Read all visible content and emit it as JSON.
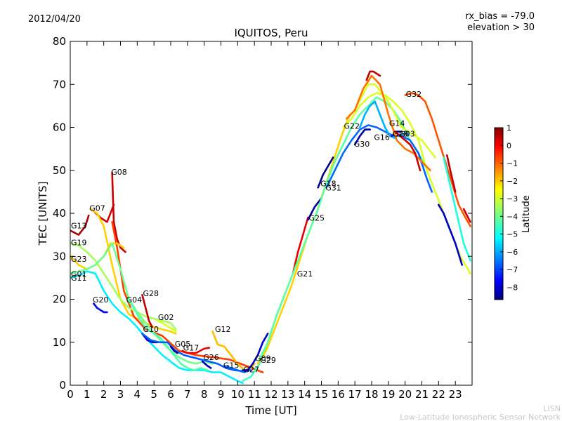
{
  "chart_data": {
    "type": "line",
    "title": "IQUITOS, Peru",
    "date": "2012/04/20",
    "annotation_line1": "rx_bias = -79.0",
    "annotation_line2": "elevation > 30",
    "xlabel": "Time [UT]",
    "ylabel": "TEC [UNITS]",
    "xlim": [
      0,
      24
    ],
    "ylim": [
      0,
      80
    ],
    "xticks": [
      "0",
      "1",
      "2",
      "3",
      "4",
      "5",
      "6",
      "7",
      "8",
      "9",
      "10",
      "11",
      "12",
      "13",
      "14",
      "15",
      "16",
      "17",
      "18",
      "19",
      "20",
      "21",
      "22",
      "23"
    ],
    "yticks": [
      "0",
      "10",
      "20",
      "30",
      "40",
      "50",
      "60",
      "70",
      "80"
    ],
    "grid": false,
    "colorbar": {
      "label": "Latitude",
      "range": [
        -8.7,
        1
      ],
      "ticks": [
        "1",
        "0",
        "−1",
        "−2",
        "−3",
        "−4",
        "−5",
        "−6",
        "−7",
        "−8"
      ],
      "colormap": [
        "#00007f",
        "#0000ff",
        "#007fff",
        "#00ffff",
        "#7fff7f",
        "#ffff00",
        "#ff7f00",
        "#ff0000",
        "#7f0000"
      ]
    },
    "series": [
      {
        "name": "G13",
        "lat": 0.6,
        "label_at": [
          0.0,
          36.5
        ],
        "x": [
          0,
          0.5,
          0.9,
          1.1
        ],
        "y": [
          36,
          35,
          37,
          39.5
        ]
      },
      {
        "name": "G07",
        "lat": 0.2,
        "label_at": [
          1.1,
          40.6
        ],
        "x": [
          1.2,
          1.4,
          1.8,
          2.2,
          2.6
        ],
        "y": [
          41,
          40.5,
          39,
          38,
          42
        ]
      },
      {
        "name": "G07",
        "lat": -2.2,
        "label_at": null,
        "x": [
          1.2,
          1.6,
          2.0,
          2.5,
          3.0,
          3.5,
          4.0,
          4.5,
          5.0,
          5.5,
          6.0,
          6.3
        ],
        "y": [
          41,
          40,
          37,
          28,
          20,
          16.5,
          15.5,
          14.5,
          13.5,
          13,
          12.5,
          12
        ]
      },
      {
        "name": "G08",
        "lat": 0.3,
        "label_at": [
          2.4,
          49
        ],
        "x": [
          2.5,
          2.6,
          2.8,
          3.0,
          3.3
        ],
        "y": [
          49.5,
          38,
          34,
          32,
          31
        ]
      },
      {
        "name": "G08",
        "lat": -0.8,
        "label_at": null,
        "x": [
          2.5,
          2.8,
          3.2,
          3.8,
          4.5,
          5.5,
          6.5,
          7.5,
          8.5,
          9.5,
          10.5,
          11.5
        ],
        "y": [
          38,
          32,
          22,
          16,
          13,
          11.5,
          8,
          7,
          6.5,
          6,
          4.5,
          3
        ]
      },
      {
        "name": "G19",
        "lat": -3.5,
        "label_at": [
          0.0,
          32.6
        ],
        "x": [
          0,
          0.5,
          1,
          1.5,
          2,
          2.5,
          3,
          3.5,
          4,
          4.5,
          5,
          5.5,
          6,
          6.3
        ],
        "y": [
          33,
          32.5,
          31,
          29,
          26,
          23,
          20,
          18,
          17,
          16,
          15.5,
          15,
          14.5,
          13
        ]
      },
      {
        "name": "G23",
        "lat": -2.2,
        "label_at": [
          0.0,
          28.7
        ],
        "x": [
          0,
          0.5,
          1,
          1.5,
          2,
          2.4,
          2.8,
          3.2
        ],
        "y": [
          30,
          28,
          27,
          28,
          30,
          33,
          33,
          32
        ]
      },
      {
        "name": "G01",
        "lat": -4.0,
        "label_at": [
          0.0,
          25.2
        ],
        "x": [
          0,
          0.5,
          1,
          1.5,
          2,
          2.5,
          3,
          3.5,
          4,
          4.5,
          5,
          5.5,
          6,
          6.5,
          7,
          7.5,
          8,
          8.5
        ],
        "y": [
          26,
          26.5,
          27,
          28,
          30,
          33,
          27,
          20,
          17,
          14.5,
          12,
          10,
          8,
          6.5,
          5.5,
          5,
          5.5,
          5
        ]
      },
      {
        "name": "G11",
        "lat": -5.2,
        "label_at": [
          0.0,
          24.3
        ],
        "x": [
          0,
          0.5,
          1,
          1.5,
          2,
          2.5,
          3,
          3.5,
          4,
          4.5,
          5,
          5.5,
          6,
          6.5,
          7,
          7.5,
          8,
          8.5,
          9,
          9.5,
          10,
          10.3
        ],
        "y": [
          25,
          25.5,
          26.5,
          26,
          22,
          19,
          17,
          15.5,
          13.5,
          11,
          9,
          7,
          5.5,
          4,
          3.5,
          3.5,
          3.5,
          3,
          3,
          2,
          1,
          0.5
        ]
      },
      {
        "name": "G20",
        "lat": -7.6,
        "label_at": [
          1.3,
          19.3
        ],
        "x": [
          1.4,
          1.6,
          1.8,
          2.0,
          2.2
        ],
        "y": [
          19,
          18,
          17.5,
          17,
          17
        ]
      },
      {
        "name": "G04",
        "lat": -4.3,
        "label_at": [
          3.3,
          19.3
        ],
        "x": [
          3.4,
          3.8,
          4.2,
          4.6,
          5.0,
          5.4,
          5.8,
          6.2,
          6.6,
          7.0,
          7.4,
          7.8,
          8.2
        ],
        "y": [
          20,
          18,
          15,
          13,
          12,
          11,
          9,
          7,
          5,
          4,
          3.5,
          4,
          3.5
        ]
      },
      {
        "name": "G28",
        "lat": 0.4,
        "label_at": [
          4.3,
          20.7
        ],
        "x": [
          4.3,
          4.5,
          4.7,
          4.9
        ],
        "y": [
          21,
          18,
          15,
          13.5
        ]
      },
      {
        "name": "G02",
        "lat": -3.0,
        "label_at": [
          5.2,
          15.2
        ],
        "x": [
          5.2,
          5.5,
          5.9,
          6.3
        ],
        "y": [
          15,
          14.5,
          13.5,
          12.5
        ]
      },
      {
        "name": "G10",
        "lat": -8.0,
        "label_at": [
          4.3,
          12.4
        ],
        "x": [
          4.3,
          4.6,
          4.9,
          5.2
        ],
        "y": [
          12,
          10.5,
          10,
          10
        ]
      },
      {
        "name": "G10",
        "lat": -6.6,
        "label_at": null,
        "x": [
          4.3,
          4.8,
          5.3,
          5.8,
          6.3,
          6.8,
          7.3,
          7.8,
          8.3,
          8.8,
          9.3,
          9.8,
          10.3,
          10.8
        ],
        "y": [
          12,
          10.5,
          10,
          10,
          8,
          7,
          6.5,
          6,
          5.5,
          5,
          4,
          3.5,
          3.3,
          3.5
        ]
      },
      {
        "name": "G05",
        "lat": -8.5,
        "label_at": [
          6.2,
          9.0
        ],
        "x": [
          6.0,
          6.2,
          6.4
        ],
        "y": [
          9,
          8,
          7.5
        ]
      },
      {
        "name": "G17",
        "lat": 0.0,
        "label_at": [
          6.7,
          8.1
        ],
        "x": [
          6.7,
          7.0,
          7.5,
          8.0,
          8.3
        ],
        "y": [
          8,
          7.5,
          7.5,
          8.5,
          8.7
        ]
      },
      {
        "name": "G26",
        "lat": -8.2,
        "label_at": [
          7.9,
          5.9
        ],
        "x": [
          7.9,
          8.2,
          8.4
        ],
        "y": [
          5.5,
          4.5,
          4
        ]
      },
      {
        "name": "G12",
        "lat": -2.0,
        "label_at": [
          8.6,
          12.4
        ],
        "x": [
          8.5,
          8.8,
          9.2,
          9.6,
          10.0,
          10.4,
          10.8,
          11.0
        ],
        "y": [
          12.5,
          9.5,
          9,
          7,
          5,
          3.5,
          4,
          5
        ]
      },
      {
        "name": "G15",
        "lat": -6.5,
        "label_at": [
          9.1,
          4.0
        ],
        "x": [
          9.2,
          9.6,
          10.0,
          10.4,
          10.6
        ],
        "y": [
          4.5,
          4,
          3.5,
          3,
          3.5
        ]
      },
      {
        "name": "G27",
        "lat": -8.0,
        "label_at": [
          10.3,
          3.0
        ],
        "x": [
          10.3,
          10.6,
          10.9,
          11.2,
          11.5,
          11.8
        ],
        "y": [
          3.5,
          3.5,
          5,
          7,
          10,
          12
        ]
      },
      {
        "name": "G09",
        "lat": -4.5,
        "label_at": [
          11.0,
          5.6
        ],
        "x": [
          10.3,
          10.8,
          11.3,
          11.8,
          12.3,
          12.8
        ],
        "y": [
          1,
          2,
          5,
          10,
          16,
          21
        ]
      },
      {
        "name": "G29",
        "lat": -2.2,
        "label_at": [
          11.3,
          5.2
        ],
        "x": [
          11.2,
          11.7,
          12.2,
          12.7,
          13.2,
          13.7,
          14.2,
          14.7,
          15.2,
          15.7,
          16.2,
          16.7
        ],
        "y": [
          5,
          8,
          13,
          18,
          23,
          29,
          35,
          40,
          46,
          52,
          58,
          63
        ]
      },
      {
        "name": "G21",
        "lat": 0.0,
        "label_at": [
          13.5,
          25.3
        ],
        "x": [
          13.3,
          13.6,
          13.9,
          14.2
        ],
        "y": [
          26,
          31,
          35,
          39
        ]
      },
      {
        "name": "G25",
        "lat": -8.3,
        "label_at": [
          14.2,
          38.3
        ],
        "x": [
          14.2,
          14.4,
          14.6,
          14.8,
          15.0
        ],
        "y": [
          38.5,
          40,
          41.5,
          42.5,
          43.5
        ]
      },
      {
        "name": "G21",
        "lat": -4.2,
        "label_at": null,
        "x": [
          11.3,
          11.8,
          12.3,
          12.8,
          13.3,
          13.8,
          14.3,
          14.8,
          15.3,
          15.8,
          16.3,
          16.8,
          17.3,
          17.8,
          18.3,
          18.8,
          19.3,
          19.8,
          20.3,
          20.8,
          21.2
        ],
        "y": [
          6,
          10,
          16,
          21,
          26,
          31,
          36,
          41,
          47,
          52,
          56,
          60,
          63,
          65,
          67,
          66,
          64,
          61,
          57,
          54,
          51
        ]
      },
      {
        "name": "G18",
        "lat": -8.6,
        "label_at": [
          14.9,
          46.3
        ],
        "x": [
          14.8,
          15.1,
          15.4,
          15.7
        ],
        "y": [
          46,
          49,
          51,
          53
        ]
      },
      {
        "name": "G31",
        "lat": -6.5,
        "label_at": [
          15.2,
          45.3
        ],
        "x": [
          15.3,
          15.8,
          16.3,
          16.8,
          17.3,
          17.8,
          18.3,
          18.8,
          19.3,
          19.8,
          20.3,
          20.8,
          21.3,
          21.6
        ],
        "y": [
          46,
          50,
          54,
          57,
          59.5,
          60.5,
          60,
          59,
          58,
          58,
          57,
          54,
          48,
          45
        ]
      },
      {
        "name": "G22",
        "lat": -3.0,
        "label_at": [
          16.3,
          59.7
        ],
        "x": [
          16.3,
          16.8,
          17.3,
          17.8,
          18.3,
          18.8,
          19.3,
          19.8,
          20.3,
          20.8,
          21.3,
          21.8,
          22.3,
          22.8,
          23.3,
          23.9
        ],
        "y": [
          60,
          62,
          65,
          67,
          68,
          67.5,
          66,
          64,
          61,
          57,
          50,
          45,
          40,
          35,
          30,
          26
        ]
      },
      {
        "name": "G30",
        "lat": -8.2,
        "label_at": [
          16.9,
          55.5
        ],
        "x": [
          17.0,
          17.3,
          17.6,
          17.9
        ],
        "y": [
          56,
          58,
          59.5,
          59.5
        ]
      },
      {
        "name": "G16",
        "lat": -5.8,
        "label_at": [
          18.1,
          57.1
        ],
        "x": [
          17.3,
          17.6,
          17.9,
          18.2,
          18.5,
          18.8,
          19.1,
          19.4
        ],
        "y": [
          60,
          63,
          65,
          66,
          63,
          60,
          58,
          57.5
        ]
      },
      {
        "name": "G14",
        "lat": -3.0,
        "label_at": [
          19.0,
          60.3
        ],
        "x": [
          17.0,
          17.4,
          17.8,
          18.2,
          18.6,
          19.0,
          19.4,
          19.8,
          20.2,
          20.6,
          21.0,
          21.4,
          21.8
        ],
        "y": [
          64,
          67,
          70,
          70,
          68,
          66,
          63,
          60,
          59,
          58,
          57,
          55,
          53
        ]
      },
      {
        "name": "G28",
        "lat": -8.0,
        "label_at": [
          19.2,
          57.9
        ],
        "x": [
          19.2,
          19.5,
          19.8
        ],
        "y": [
          58,
          59,
          59
        ]
      },
      {
        "name": "G03",
        "lat": -6.0,
        "label_at": [
          19.6,
          57.9
        ],
        "x": [
          19.6,
          19.9,
          20.2
        ],
        "y": [
          58,
          58.5,
          58.5
        ]
      },
      {
        "name": "G32",
        "lat": -1.0,
        "label_at": [
          20.0,
          67.1
        ],
        "x": [
          20.0,
          20.4,
          20.8,
          21.2,
          21.6,
          22.0,
          22.4,
          22.8,
          23.2,
          23.6,
          23.9
        ],
        "y": [
          67.5,
          68,
          67.5,
          66,
          62,
          57,
          52,
          47,
          42,
          39,
          37
        ]
      },
      {
        "name": "G32",
        "lat": -1.3,
        "label_at": null,
        "x": [
          16.5,
          17.0,
          17.5,
          18.0,
          18.5,
          19.0,
          19.5,
          20.0,
          20.5,
          21.0,
          21.5
        ],
        "y": [
          62,
          64,
          69,
          72,
          70,
          63,
          57,
          55,
          54,
          52,
          50
        ]
      },
      {
        "name": "G32",
        "lat": 0.4,
        "label_at": null,
        "x": [
          17.7,
          17.9,
          18.1,
          18.3,
          18.5
        ],
        "y": [
          71,
          73,
          73,
          72.5,
          72
        ]
      },
      {
        "name": "G14",
        "lat": 0.3,
        "label_at": null,
        "x": [
          19.4,
          19.7,
          20.0,
          20.3,
          20.6,
          20.9
        ],
        "y": [
          59,
          58,
          57,
          56,
          54,
          50
        ]
      },
      {
        "name": "G16",
        "lat": -8.0,
        "label_at": null,
        "x": [
          22.0,
          22.3,
          22.6,
          23.0,
          23.4
        ],
        "y": [
          42,
          40,
          37,
          33,
          28
        ]
      },
      {
        "name": "G22",
        "lat": 0.4,
        "label_at": null,
        "x": [
          22.5,
          22.7,
          23.0
        ],
        "y": [
          53.5,
          50,
          45
        ]
      },
      {
        "name": "G22",
        "lat": 0.2,
        "label_at": null,
        "x": [
          23.5,
          23.7,
          23.9
        ],
        "y": [
          41,
          39.5,
          38
        ]
      },
      {
        "name": "G30",
        "lat": -4.8,
        "label_at": null,
        "x": [
          22.3,
          22.6,
          22.9,
          23.2,
          23.5,
          23.9
        ],
        "y": [
          53,
          48,
          43,
          38,
          33,
          29
        ]
      }
    ]
  },
  "watermark": {
    "line1": "LISN",
    "line2": "Low-Latitude Ionospheric Sensor Network"
  }
}
